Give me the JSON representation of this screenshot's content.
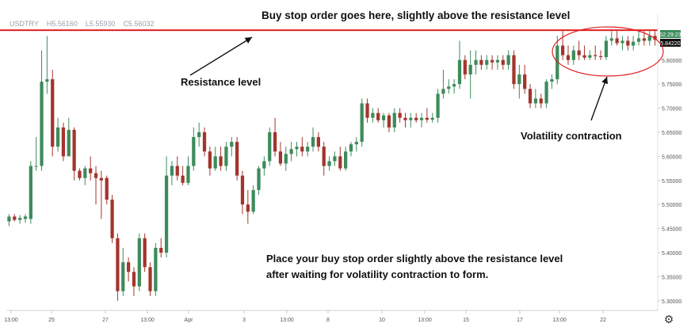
{
  "ohlc": {
    "symbol": "USDTRY",
    "high": "H5.56160",
    "low": "L5.55930",
    "close": "C5.56032"
  },
  "annotations": {
    "top": "Buy stop order goes here, slightly above the resistance level",
    "resistance": "Resistance level",
    "volatility": "Volatility contraction",
    "bottom_line1": "Place your buy stop order slightly above the resistance level",
    "bottom_line2": "after waiting for volatility contraction to form."
  },
  "price_badges": {
    "time": "02:29:23",
    "price": "5.84220"
  },
  "colors": {
    "bull": "#3d8b5b",
    "bear": "#a3352c",
    "resistance": "#e02020",
    "annotation_arrow": "#111111"
  },
  "settings_icon": "gear-icon",
  "chart_data": {
    "type": "candlestick",
    "symbol": "USDTRY",
    "ylim": [
      5.28,
      5.895
    ],
    "y_ticks": [
      "5.80000",
      "5.75000",
      "5.70000",
      "5.65000",
      "5.60000",
      "5.55000",
      "5.50000",
      "5.45000",
      "5.40000",
      "5.35000",
      "5.30000"
    ],
    "x_ticks": [
      "13:00",
      "25",
      "27",
      "13:00",
      "Apr",
      "3",
      "13:00",
      "8",
      "10",
      "13:00",
      "15",
      "17",
      "13:00",
      "22"
    ],
    "resistance_level": 5.862,
    "candles": [
      {
        "o": 5.465,
        "h": 5.48,
        "l": 5.455,
        "c": 5.475
      },
      {
        "o": 5.475,
        "h": 5.48,
        "l": 5.465,
        "c": 5.468
      },
      {
        "o": 5.468,
        "h": 5.478,
        "l": 5.46,
        "c": 5.472
      },
      {
        "o": 5.47,
        "h": 5.48,
        "l": 5.462,
        "c": 5.475
      },
      {
        "o": 5.47,
        "h": 5.59,
        "l": 5.46,
        "c": 5.58
      },
      {
        "o": 5.58,
        "h": 5.64,
        "l": 5.57,
        "c": 5.58
      },
      {
        "o": 5.58,
        "h": 5.82,
        "l": 5.57,
        "c": 5.755
      },
      {
        "o": 5.755,
        "h": 5.85,
        "l": 5.73,
        "c": 5.76
      },
      {
        "o": 5.76,
        "h": 5.78,
        "l": 5.6,
        "c": 5.62
      },
      {
        "o": 5.62,
        "h": 5.68,
        "l": 5.61,
        "c": 5.66
      },
      {
        "o": 5.66,
        "h": 5.67,
        "l": 5.59,
        "c": 5.6
      },
      {
        "o": 5.6,
        "h": 5.68,
        "l": 5.6,
        "c": 5.655
      },
      {
        "o": 5.655,
        "h": 5.66,
        "l": 5.55,
        "c": 5.57
      },
      {
        "o": 5.57,
        "h": 5.575,
        "l": 5.55,
        "c": 5.555
      },
      {
        "o": 5.555,
        "h": 5.58,
        "l": 5.54,
        "c": 5.575
      },
      {
        "o": 5.575,
        "h": 5.6,
        "l": 5.55,
        "c": 5.565
      },
      {
        "o": 5.565,
        "h": 5.58,
        "l": 5.5,
        "c": 5.555
      },
      {
        "o": 5.555,
        "h": 5.57,
        "l": 5.47,
        "c": 5.55
      },
      {
        "o": 5.555,
        "h": 5.56,
        "l": 5.5,
        "c": 5.51
      },
      {
        "o": 5.51,
        "h": 5.52,
        "l": 5.42,
        "c": 5.43
      },
      {
        "o": 5.43,
        "h": 5.44,
        "l": 5.3,
        "c": 5.32
      },
      {
        "o": 5.32,
        "h": 5.41,
        "l": 5.31,
        "c": 5.38
      },
      {
        "o": 5.38,
        "h": 5.39,
        "l": 5.34,
        "c": 5.36
      },
      {
        "o": 5.36,
        "h": 5.37,
        "l": 5.31,
        "c": 5.33
      },
      {
        "o": 5.33,
        "h": 5.44,
        "l": 5.32,
        "c": 5.43
      },
      {
        "o": 5.43,
        "h": 5.44,
        "l": 5.36,
        "c": 5.37
      },
      {
        "o": 5.37,
        "h": 5.38,
        "l": 5.31,
        "c": 5.32
      },
      {
        "o": 5.32,
        "h": 5.42,
        "l": 5.31,
        "c": 5.41
      },
      {
        "o": 5.41,
        "h": 5.43,
        "l": 5.39,
        "c": 5.4
      },
      {
        "o": 5.4,
        "h": 5.6,
        "l": 5.39,
        "c": 5.56
      },
      {
        "o": 5.56,
        "h": 5.59,
        "l": 5.54,
        "c": 5.58
      },
      {
        "o": 5.58,
        "h": 5.6,
        "l": 5.55,
        "c": 5.56
      },
      {
        "o": 5.56,
        "h": 5.58,
        "l": 5.54,
        "c": 5.545
      },
      {
        "o": 5.545,
        "h": 5.6,
        "l": 5.54,
        "c": 5.58
      },
      {
        "o": 5.58,
        "h": 5.66,
        "l": 5.57,
        "c": 5.64
      },
      {
        "o": 5.64,
        "h": 5.67,
        "l": 5.62,
        "c": 5.65
      },
      {
        "o": 5.65,
        "h": 5.66,
        "l": 5.6,
        "c": 5.61
      },
      {
        "o": 5.61,
        "h": 5.62,
        "l": 5.56,
        "c": 5.575
      },
      {
        "o": 5.575,
        "h": 5.62,
        "l": 5.57,
        "c": 5.6
      },
      {
        "o": 5.6,
        "h": 5.62,
        "l": 5.57,
        "c": 5.58
      },
      {
        "o": 5.58,
        "h": 5.63,
        "l": 5.57,
        "c": 5.62
      },
      {
        "o": 5.62,
        "h": 5.64,
        "l": 5.6,
        "c": 5.63
      },
      {
        "o": 5.63,
        "h": 5.64,
        "l": 5.55,
        "c": 5.56
      },
      {
        "o": 5.56,
        "h": 5.57,
        "l": 5.48,
        "c": 5.5
      },
      {
        "o": 5.5,
        "h": 5.53,
        "l": 5.46,
        "c": 5.485
      },
      {
        "o": 5.485,
        "h": 5.54,
        "l": 5.48,
        "c": 5.53
      },
      {
        "o": 5.53,
        "h": 5.58,
        "l": 5.52,
        "c": 5.575
      },
      {
        "o": 5.575,
        "h": 5.6,
        "l": 5.56,
        "c": 5.59
      },
      {
        "o": 5.59,
        "h": 5.66,
        "l": 5.58,
        "c": 5.65
      },
      {
        "o": 5.65,
        "h": 5.68,
        "l": 5.6,
        "c": 5.61
      },
      {
        "o": 5.61,
        "h": 5.63,
        "l": 5.58,
        "c": 5.585
      },
      {
        "o": 5.585,
        "h": 5.62,
        "l": 5.57,
        "c": 5.605
      },
      {
        "o": 5.605,
        "h": 5.63,
        "l": 5.59,
        "c": 5.615
      },
      {
        "o": 5.615,
        "h": 5.63,
        "l": 5.6,
        "c": 5.62
      },
      {
        "o": 5.62,
        "h": 5.64,
        "l": 5.6,
        "c": 5.61
      },
      {
        "o": 5.61,
        "h": 5.63,
        "l": 5.6,
        "c": 5.62
      },
      {
        "o": 5.62,
        "h": 5.66,
        "l": 5.61,
        "c": 5.64
      },
      {
        "o": 5.64,
        "h": 5.65,
        "l": 5.61,
        "c": 5.62
      },
      {
        "o": 5.62,
        "h": 5.63,
        "l": 5.56,
        "c": 5.58
      },
      {
        "o": 5.58,
        "h": 5.6,
        "l": 5.57,
        "c": 5.59
      },
      {
        "o": 5.59,
        "h": 5.61,
        "l": 5.58,
        "c": 5.6
      },
      {
        "o": 5.6,
        "h": 5.62,
        "l": 5.57,
        "c": 5.575
      },
      {
        "o": 5.575,
        "h": 5.62,
        "l": 5.57,
        "c": 5.61
      },
      {
        "o": 5.61,
        "h": 5.63,
        "l": 5.6,
        "c": 5.625
      },
      {
        "o": 5.625,
        "h": 5.64,
        "l": 5.61,
        "c": 5.63
      },
      {
        "o": 5.63,
        "h": 5.72,
        "l": 5.62,
        "c": 5.71
      },
      {
        "o": 5.71,
        "h": 5.72,
        "l": 5.67,
        "c": 5.68
      },
      {
        "o": 5.68,
        "h": 5.7,
        "l": 5.67,
        "c": 5.69
      },
      {
        "o": 5.69,
        "h": 5.7,
        "l": 5.67,
        "c": 5.675
      },
      {
        "o": 5.675,
        "h": 5.69,
        "l": 5.66,
        "c": 5.685
      },
      {
        "o": 5.685,
        "h": 5.69,
        "l": 5.65,
        "c": 5.66
      },
      {
        "o": 5.66,
        "h": 5.7,
        "l": 5.65,
        "c": 5.69
      },
      {
        "o": 5.69,
        "h": 5.7,
        "l": 5.67,
        "c": 5.68
      },
      {
        "o": 5.68,
        "h": 5.69,
        "l": 5.66,
        "c": 5.675
      },
      {
        "o": 5.675,
        "h": 5.69,
        "l": 5.66,
        "c": 5.68
      },
      {
        "o": 5.68,
        "h": 5.69,
        "l": 5.67,
        "c": 5.675
      },
      {
        "o": 5.675,
        "h": 5.69,
        "l": 5.66,
        "c": 5.68
      },
      {
        "o": 5.68,
        "h": 5.7,
        "l": 5.67,
        "c": 5.676
      },
      {
        "o": 5.676,
        "h": 5.69,
        "l": 5.67,
        "c": 5.68
      },
      {
        "o": 5.68,
        "h": 5.74,
        "l": 5.67,
        "c": 5.73
      },
      {
        "o": 5.73,
        "h": 5.78,
        "l": 5.72,
        "c": 5.74
      },
      {
        "o": 5.74,
        "h": 5.76,
        "l": 5.73,
        "c": 5.745
      },
      {
        "o": 5.745,
        "h": 5.76,
        "l": 5.73,
        "c": 5.75
      },
      {
        "o": 5.75,
        "h": 5.84,
        "l": 5.74,
        "c": 5.8
      },
      {
        "o": 5.8,
        "h": 5.81,
        "l": 5.76,
        "c": 5.77
      },
      {
        "o": 5.77,
        "h": 5.82,
        "l": 5.72,
        "c": 5.79
      },
      {
        "o": 5.79,
        "h": 5.82,
        "l": 5.77,
        "c": 5.8
      },
      {
        "o": 5.8,
        "h": 5.81,
        "l": 5.78,
        "c": 5.79
      },
      {
        "o": 5.79,
        "h": 5.81,
        "l": 5.78,
        "c": 5.8
      },
      {
        "o": 5.8,
        "h": 5.81,
        "l": 5.78,
        "c": 5.795
      },
      {
        "o": 5.795,
        "h": 5.81,
        "l": 5.78,
        "c": 5.8
      },
      {
        "o": 5.8,
        "h": 5.81,
        "l": 5.78,
        "c": 5.79
      },
      {
        "o": 5.79,
        "h": 5.82,
        "l": 5.78,
        "c": 5.81
      },
      {
        "o": 5.81,
        "h": 5.82,
        "l": 5.74,
        "c": 5.75
      },
      {
        "o": 5.75,
        "h": 5.79,
        "l": 5.72,
        "c": 5.77
      },
      {
        "o": 5.77,
        "h": 5.79,
        "l": 5.73,
        "c": 5.74
      },
      {
        "o": 5.74,
        "h": 5.75,
        "l": 5.7,
        "c": 5.71
      },
      {
        "o": 5.71,
        "h": 5.74,
        "l": 5.7,
        "c": 5.72
      },
      {
        "o": 5.72,
        "h": 5.73,
        "l": 5.7,
        "c": 5.71
      },
      {
        "o": 5.71,
        "h": 5.76,
        "l": 5.7,
        "c": 5.755
      },
      {
        "o": 5.755,
        "h": 5.77,
        "l": 5.74,
        "c": 5.76
      },
      {
        "o": 5.76,
        "h": 5.85,
        "l": 5.75,
        "c": 5.83
      },
      {
        "o": 5.83,
        "h": 5.86,
        "l": 5.8,
        "c": 5.81
      },
      {
        "o": 5.81,
        "h": 5.83,
        "l": 5.79,
        "c": 5.8
      },
      {
        "o": 5.8,
        "h": 5.83,
        "l": 5.79,
        "c": 5.82
      },
      {
        "o": 5.82,
        "h": 5.84,
        "l": 5.8,
        "c": 5.81
      },
      {
        "o": 5.81,
        "h": 5.83,
        "l": 5.8,
        "c": 5.805
      },
      {
        "o": 5.805,
        "h": 5.82,
        "l": 5.8,
        "c": 5.81
      },
      {
        "o": 5.81,
        "h": 5.83,
        "l": 5.8,
        "c": 5.808
      },
      {
        "o": 5.808,
        "h": 5.82,
        "l": 5.8,
        "c": 5.806
      },
      {
        "o": 5.806,
        "h": 5.85,
        "l": 5.8,
        "c": 5.84
      },
      {
        "o": 5.84,
        "h": 5.86,
        "l": 5.83,
        "c": 5.845
      },
      {
        "o": 5.845,
        "h": 5.86,
        "l": 5.83,
        "c": 5.835
      },
      {
        "o": 5.835,
        "h": 5.85,
        "l": 5.82,
        "c": 5.84
      },
      {
        "o": 5.84,
        "h": 5.85,
        "l": 5.82,
        "c": 5.83
      },
      {
        "o": 5.83,
        "h": 5.85,
        "l": 5.82,
        "c": 5.838
      },
      {
        "o": 5.838,
        "h": 5.86,
        "l": 5.83,
        "c": 5.845
      },
      {
        "o": 5.845,
        "h": 5.86,
        "l": 5.83,
        "c": 5.84
      },
      {
        "o": 5.84,
        "h": 5.86,
        "l": 5.83,
        "c": 5.85
      },
      {
        "o": 5.85,
        "h": 5.86,
        "l": 5.83,
        "c": 5.842
      }
    ]
  }
}
